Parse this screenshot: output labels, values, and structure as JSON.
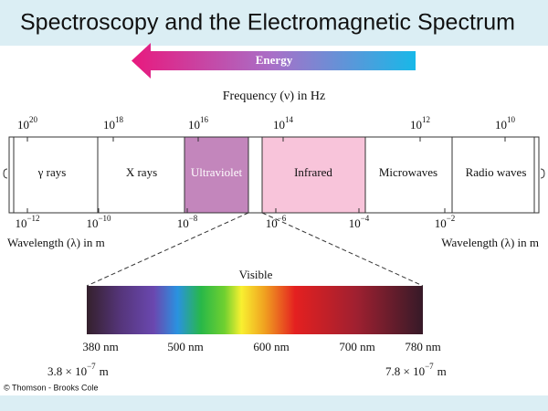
{
  "title": "Spectroscopy and the Electromagnetic Spectrum",
  "energy_label": "Energy",
  "frequency_axis": {
    "label": "Frequency (ν) in Hz",
    "ticks": [
      {
        "base": "10",
        "exponent": "20"
      },
      {
        "base": "10",
        "exponent": "18"
      },
      {
        "base": "10",
        "exponent": "16"
      },
      {
        "base": "10",
        "exponent": "14"
      },
      {
        "base": "10",
        "exponent": "12"
      },
      {
        "base": "10",
        "exponent": "10"
      }
    ]
  },
  "regions": [
    "γ rays",
    "X rays",
    "Ultraviolet",
    "Infrared",
    "Microwaves",
    "Radio waves"
  ],
  "wavelength_axis": {
    "label_left": "Wavelength (λ) in m",
    "label_right": "Wavelength (λ) in m",
    "ticks": [
      {
        "base": "10",
        "exponent": "−12"
      },
      {
        "base": "10",
        "exponent": "−10"
      },
      {
        "base": "10",
        "exponent": "−8"
      },
      {
        "base": "10",
        "exponent": "−6"
      },
      {
        "base": "10",
        "exponent": "−4"
      },
      {
        "base": "10",
        "exponent": "−2"
      }
    ]
  },
  "visible": {
    "label": "Visible",
    "ticks": [
      "380 nm",
      "500 nm",
      "600 nm",
      "700 nm",
      "780 nm"
    ],
    "start": {
      "mantissa": "3.8 × 10",
      "exponent": "−7",
      "unit": "m"
    },
    "end": {
      "mantissa": "7.8 × 10",
      "exponent": "−7",
      "unit": "m"
    }
  },
  "credit": "© Thomson - Brooks Cole"
}
